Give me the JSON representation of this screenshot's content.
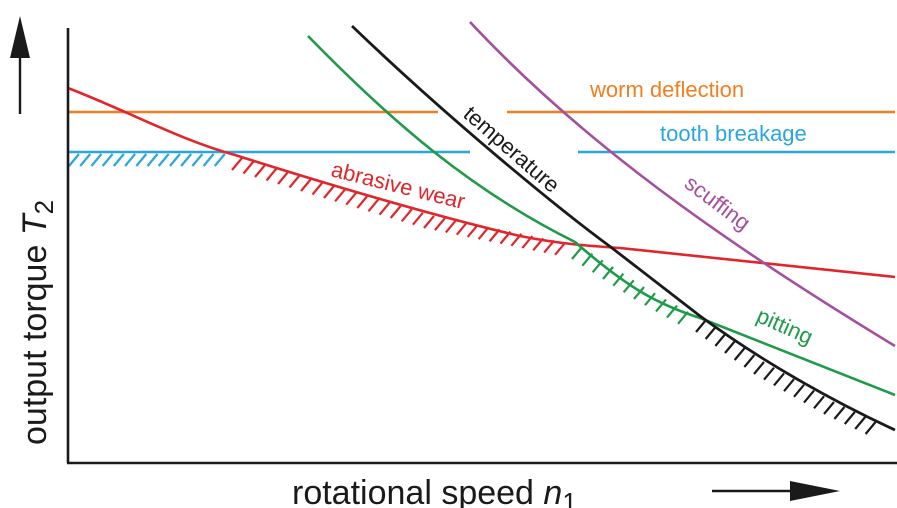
{
  "axes": {
    "x_label": "rotational speed",
    "x_symbol": "n",
    "x_subscript": "1",
    "y_label": "output torque",
    "y_symbol": "T",
    "y_subscript": "2"
  },
  "curves": [
    {
      "id": "worm-deflection",
      "label": "worm deflection",
      "color": "#f07f20"
    },
    {
      "id": "tooth-breakage",
      "label": "tooth breakage",
      "color": "#2aa6de"
    },
    {
      "id": "abrasive-wear",
      "label": "abrasive wear",
      "color": "#e0262b"
    },
    {
      "id": "temperature",
      "label": "temperature",
      "color": "#1a1a1a"
    },
    {
      "id": "scuffing",
      "label": "scuffing",
      "color": "#a3509e"
    },
    {
      "id": "pitting",
      "label": "pitting",
      "color": "#1f9a48"
    }
  ],
  "colors": {
    "axis": "#1a1a1a",
    "hatch_tooth_breakage": "#2aa6de",
    "hatch_abrasive_wear": "#e0262b",
    "hatch_pitting": "#1f9a48",
    "hatch_temperature": "#1a1a1a"
  }
}
